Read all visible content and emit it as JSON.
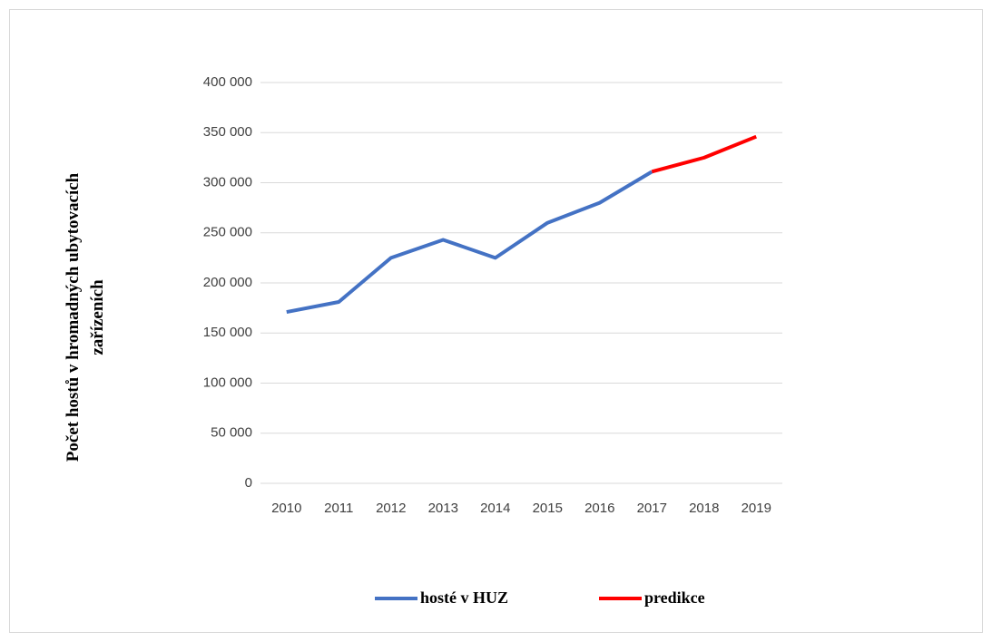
{
  "chart_data": {
    "type": "line",
    "ylabel": [
      "Počet hostů v hromadných ubytovacích",
      "zařízeních"
    ],
    "categories": [
      "2010",
      "2011",
      "2012",
      "2013",
      "2014",
      "2015",
      "2016",
      "2017",
      "2018",
      "2019"
    ],
    "series": [
      {
        "name": "hosté v HUZ",
        "color": "#4472c4",
        "values": [
          171000,
          181000,
          225000,
          243000,
          225000,
          260000,
          280000,
          311000,
          null,
          null
        ]
      },
      {
        "name": "predikce",
        "color": "#ff0000",
        "values": [
          null,
          null,
          null,
          null,
          null,
          null,
          null,
          311000,
          325000,
          346000
        ]
      }
    ],
    "ylim": [
      0,
      400000
    ],
    "yticks": [
      0,
      {
        "value": 50000,
        "label": "50 000"
      },
      {
        "value": 100000,
        "label": "100 000"
      },
      {
        "value": 150000,
        "label": "150 000"
      },
      {
        "value": 200000,
        "label": "200 000"
      },
      {
        "value": 250000,
        "label": "250 000"
      },
      {
        "value": 300000,
        "label": "300 000"
      },
      {
        "value": 350000,
        "label": "350 000"
      },
      {
        "value": 400000,
        "label": "400 000"
      }
    ],
    "grid": true,
    "legend": "bottom"
  }
}
